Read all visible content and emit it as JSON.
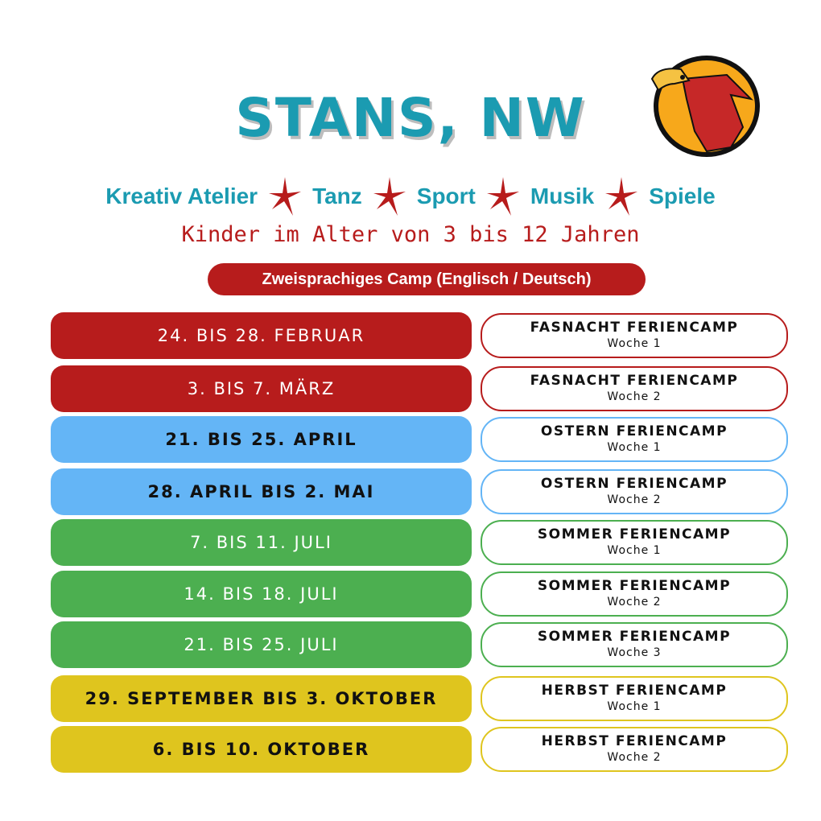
{
  "header": {
    "title": "STANS, NW",
    "logo": "eagle-logo"
  },
  "activities": [
    "Kreativ Atelier",
    "Tanz",
    "Sport",
    "Musik",
    "Spiele"
  ],
  "subtitle": "Kinder im Alter von 3 bis 12 Jahren",
  "badge": "Zweisprachiges Camp (Englisch / Deutsch)",
  "colors": {
    "red": "#b71c1c",
    "blue": "#64b5f6",
    "green": "#4caf50",
    "yellow": "#dfc51e",
    "teal": "#1b9bb1"
  },
  "camps": [
    {
      "date": "24. BIS 28. FEBRUAR",
      "name": "FASNACHT FERIENCAMP",
      "week": "Woche 1",
      "color": "red"
    },
    {
      "date": "3. BIS 7. MÄRZ",
      "name": "FASNACHT FERIENCAMP",
      "week": "Woche 2",
      "color": "red"
    },
    {
      "date": "21. BIS 25. APRIL",
      "name": "OSTERN FERIENCAMP",
      "week": "Woche 1",
      "color": "blue"
    },
    {
      "date": "28. APRIL BIS 2. MAI",
      "name": "OSTERN FERIENCAMP",
      "week": "Woche 2",
      "color": "blue"
    },
    {
      "date": "7. BIS 11. JULI",
      "name": "SOMMER FERIENCAMP",
      "week": "Woche 1",
      "color": "green"
    },
    {
      "date": "14. BIS 18. JULI",
      "name": "SOMMER FERIENCAMP",
      "week": "Woche 2",
      "color": "green"
    },
    {
      "date": "21. BIS 25. JULI",
      "name": "SOMMER FERIENCAMP",
      "week": "Woche 3",
      "color": "green"
    },
    {
      "date": "29. SEPTEMBER BIS 3. OKTOBER",
      "name": "HERBST FERIENCAMP",
      "week": "Woche 1",
      "color": "yellow"
    },
    {
      "date": "6. BIS 10. OKTOBER",
      "name": "HERBST FERIENCAMP",
      "week": "Woche 2",
      "color": "yellow"
    }
  ]
}
